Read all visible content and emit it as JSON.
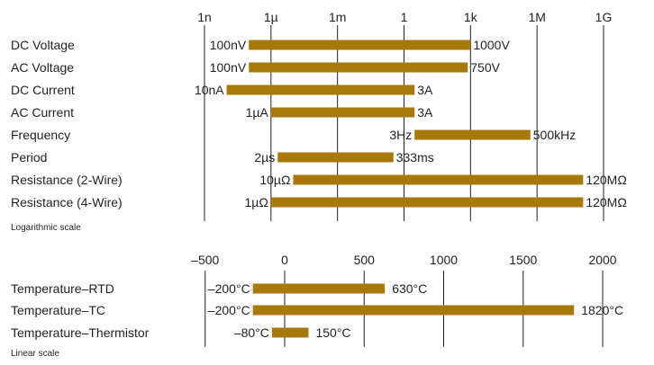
{
  "chart_data": [
    {
      "type": "range-bar",
      "scale": "log",
      "note": "Logarithmic scale",
      "tick_labels": [
        "1n",
        "1µ",
        "1m",
        "1",
        "1k",
        "1M",
        "1G"
      ],
      "tick_values": [
        1e-09,
        1e-06,
        0.001,
        1,
        1000.0,
        1000000.0,
        1000000000.0
      ],
      "bar_color": "#a7780b",
      "rows": [
        {
          "label": "DC Voltage",
          "min": 1e-07,
          "max": 1000,
          "min_label": "100nV",
          "max_label": "1000V"
        },
        {
          "label": "AC Voltage",
          "min": 1e-07,
          "max": 750,
          "min_label": "100nV",
          "max_label": "750V"
        },
        {
          "label": "DC Current",
          "min": 1e-08,
          "max": 3,
          "min_label": "10nA",
          "max_label": "3A"
        },
        {
          "label": "AC Current",
          "min": 1e-06,
          "max": 3,
          "min_label": "1µA",
          "max_label": "3A"
        },
        {
          "label": "Frequency",
          "min": 3,
          "max": 500000,
          "min_label": "3Hz",
          "max_label": "500kHz"
        },
        {
          "label": "Period",
          "min": 2e-06,
          "max": 0.333,
          "min_label": "2µs",
          "max_label": "333ms"
        },
        {
          "label": "Resistance (2-Wire)",
          "min": 1e-05,
          "max": 120000000.0,
          "min_label": "10µΩ",
          "max_label": "120MΩ"
        },
        {
          "label": "Resistance (4-Wire)",
          "min": 1e-06,
          "max": 120000000.0,
          "min_label": "1µΩ",
          "max_label": "120MΩ"
        }
      ]
    },
    {
      "type": "range-bar",
      "scale": "linear",
      "note": "Linear scale",
      "tick_labels": [
        "–500",
        "0",
        "500",
        "1000",
        "1500",
        "2000"
      ],
      "tick_values": [
        -500,
        0,
        500,
        1000,
        1500,
        2000
      ],
      "bar_color": "#a7780b",
      "rows": [
        {
          "label": "Temperature–RTD",
          "min": -200,
          "max": 630,
          "min_label": "–200°C",
          "max_label": "630°C"
        },
        {
          "label": "Temperature–TC",
          "min": -200,
          "max": 1820,
          "min_label": "–200°C",
          "max_label": "1820°C"
        },
        {
          "label": "Temperature–Thermistor",
          "min": -80,
          "max": 150,
          "min_label": "–80°C",
          "max_label": "150°C"
        }
      ]
    }
  ]
}
